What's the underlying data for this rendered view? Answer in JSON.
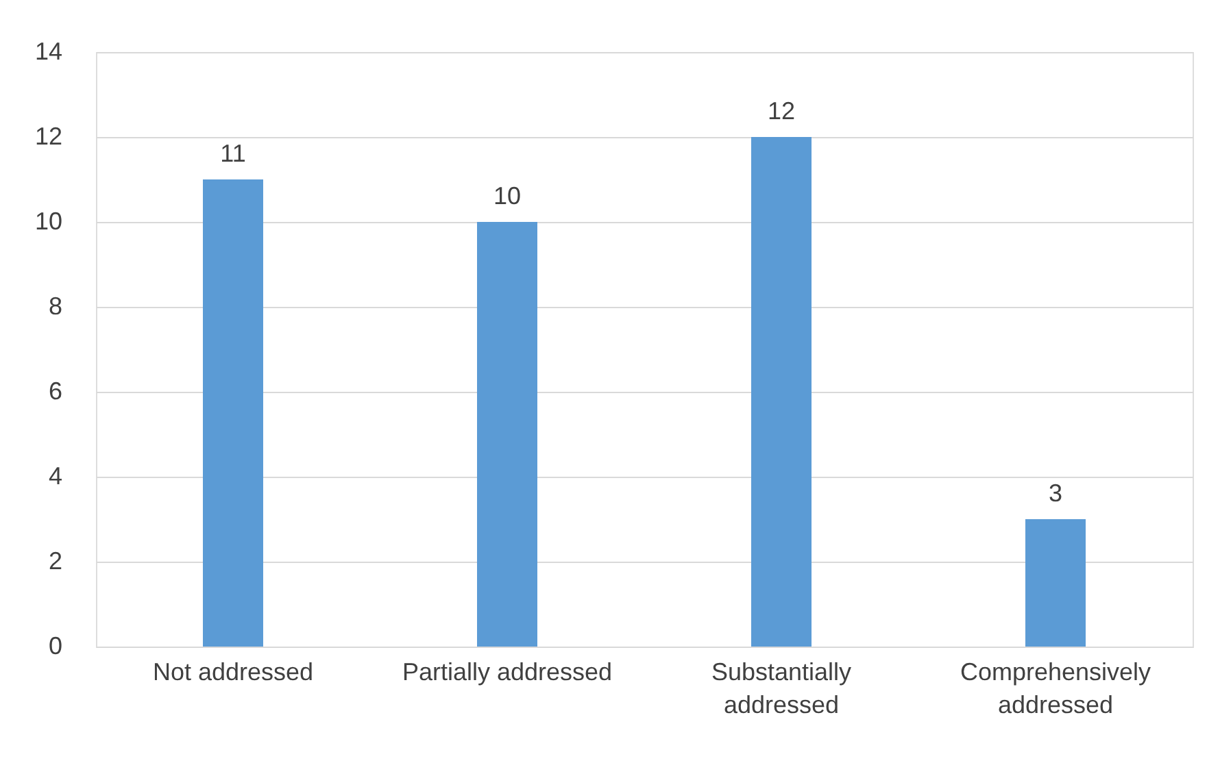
{
  "chart_data": {
    "type": "bar",
    "categories": [
      "Not addressed",
      "Partially addressed",
      "Substantially addressed",
      "Comprehensively addressed"
    ],
    "series": [
      {
        "color": "#5b9bd5",
        "values": [
          11,
          10,
          12,
          3
        ]
      }
    ],
    "ylim": [
      0,
      14
    ],
    "yticks": [
      0,
      2,
      4,
      6,
      8,
      10,
      12,
      14
    ],
    "grid": "y",
    "data_labels": true
  }
}
